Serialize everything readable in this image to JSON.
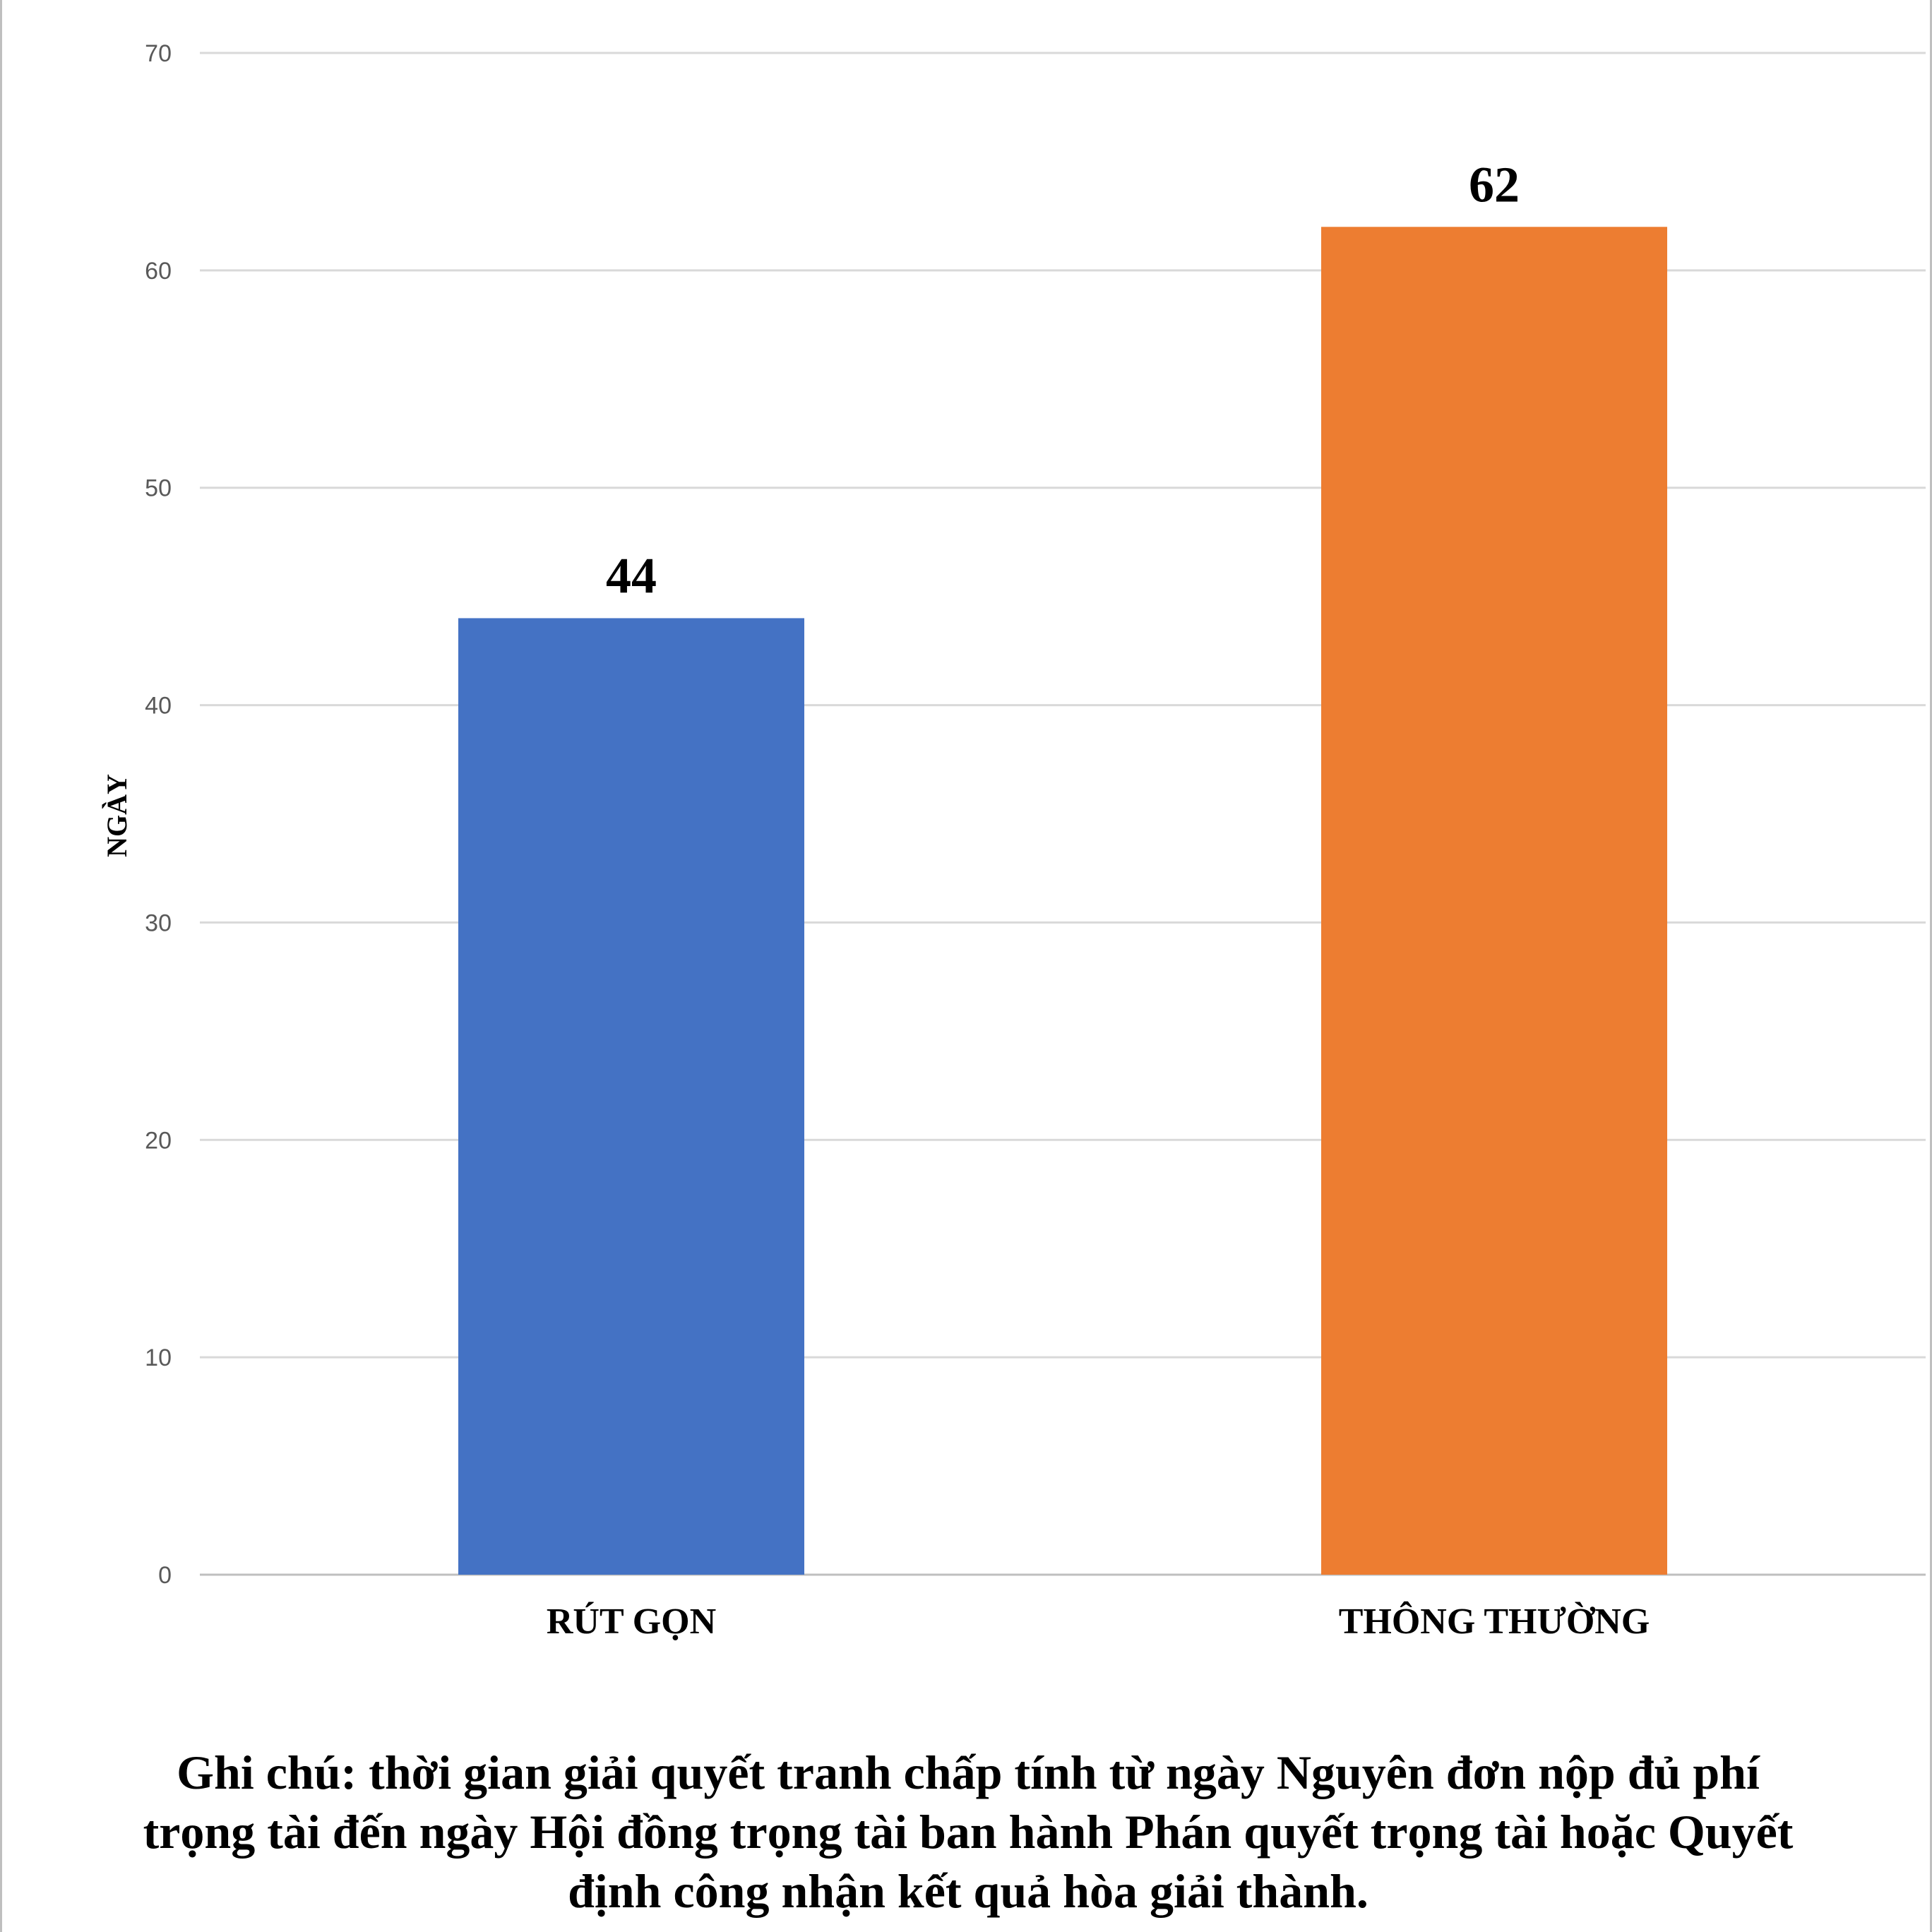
{
  "chart_data": {
    "type": "bar",
    "categories": [
      "RÚT GỌN",
      "THÔNG THƯỜNG"
    ],
    "values": [
      44,
      62
    ],
    "colors": [
      "#4472C4",
      "#ED7D31"
    ],
    "ylabel": "NGÀY",
    "xlabel": "",
    "ylim": [
      0,
      70
    ],
    "yticks": [
      0,
      10,
      20,
      30,
      40,
      50,
      60,
      70
    ],
    "grid": true,
    "data_labels": [
      "44",
      "62"
    ]
  },
  "note": "Ghi chú: thời gian giải quyết tranh chấp tính từ ngày Nguyên đơn nộp đủ phí trọng tài đến ngày Hội đồng trọng tài ban hành Phán quyết trọng tài hoặc Quyết định công nhận kết quả hòa giải thành."
}
